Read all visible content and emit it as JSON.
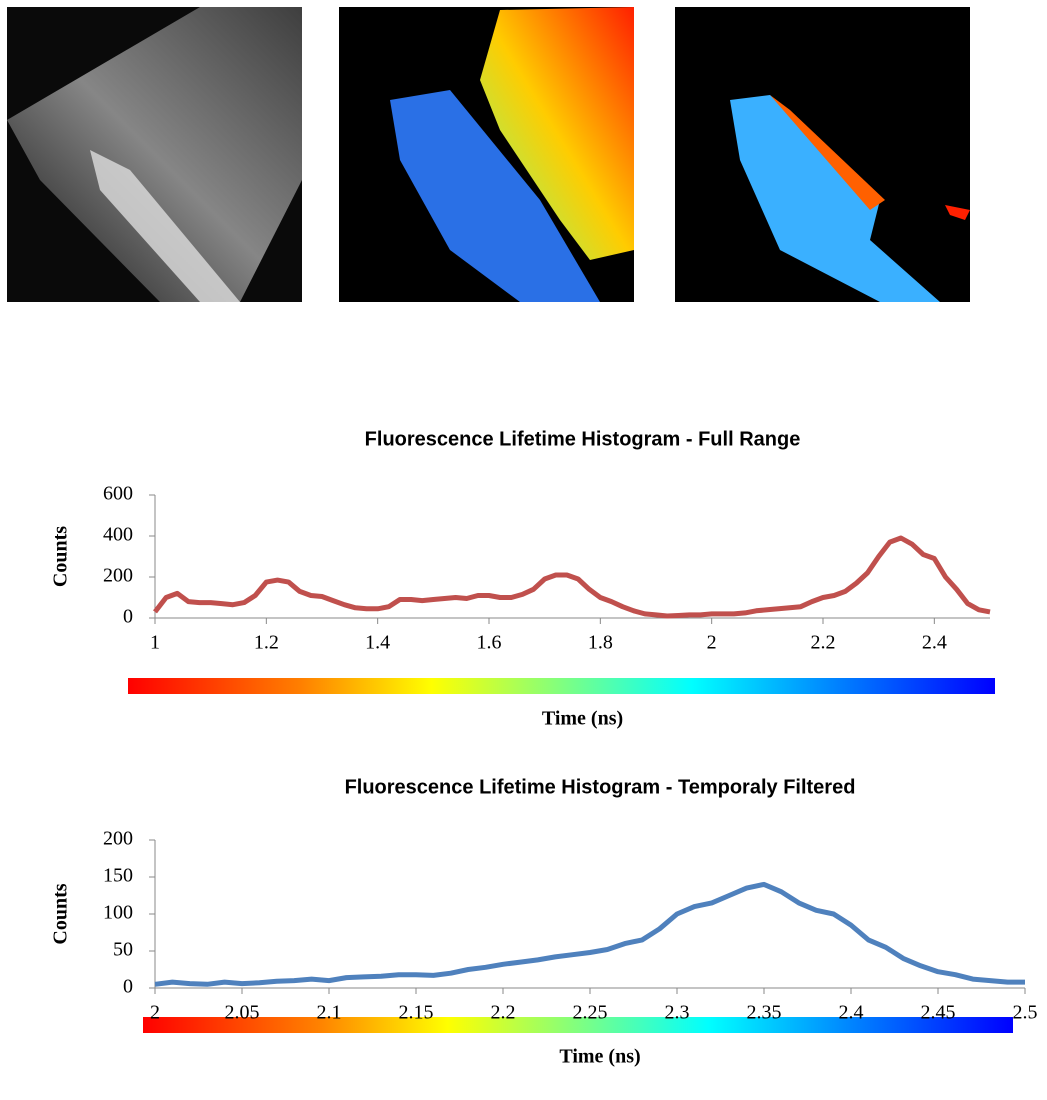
{
  "chart_data": [
    {
      "type": "line",
      "title": "Fluorescence Lifetime Histogram - Full Range",
      "x_label": "Time (ns)",
      "y_label": "Counts",
      "x": [
        1.0,
        1.02,
        1.04,
        1.06,
        1.08,
        1.1,
        1.12,
        1.14,
        1.16,
        1.18,
        1.2,
        1.22,
        1.24,
        1.26,
        1.28,
        1.3,
        1.32,
        1.34,
        1.36,
        1.38,
        1.4,
        1.42,
        1.44,
        1.46,
        1.48,
        1.5,
        1.52,
        1.54,
        1.56,
        1.58,
        1.6,
        1.62,
        1.64,
        1.66,
        1.68,
        1.7,
        1.72,
        1.74,
        1.76,
        1.78,
        1.8,
        1.82,
        1.84,
        1.86,
        1.88,
        1.9,
        1.92,
        1.94,
        1.96,
        1.98,
        2.0,
        2.02,
        2.04,
        2.06,
        2.08,
        2.1,
        2.12,
        2.14,
        2.16,
        2.18,
        2.2,
        2.22,
        2.24,
        2.26,
        2.28,
        2.3,
        2.32,
        2.34,
        2.36,
        2.38,
        2.4,
        2.42,
        2.44,
        2.46,
        2.48,
        2.5
      ],
      "values": [
        30,
        100,
        120,
        80,
        75,
        75,
        70,
        65,
        75,
        110,
        175,
        185,
        175,
        130,
        110,
        105,
        85,
        65,
        50,
        45,
        45,
        55,
        90,
        90,
        85,
        90,
        95,
        100,
        95,
        110,
        110,
        100,
        100,
        115,
        140,
        190,
        210,
        210,
        190,
        140,
        100,
        80,
        55,
        35,
        20,
        15,
        10,
        12,
        15,
        15,
        20,
        20,
        20,
        25,
        35,
        40,
        45,
        50,
        55,
        80,
        100,
        110,
        130,
        170,
        220,
        300,
        370,
        390,
        360,
        310,
        290,
        200,
        140,
        70,
        40,
        30
      ],
      "color": "#c0504d",
      "xlim": [
        1,
        2.5
      ],
      "xticks": [
        1,
        1.2,
        1.4,
        1.6,
        1.8,
        2,
        2.2,
        2.4
      ],
      "ylim": [
        0,
        600
      ],
      "yticks": [
        0,
        200,
        400,
        600
      ],
      "grid": false
    },
    {
      "type": "line",
      "title": "Fluorescence Lifetime Histogram - Temporaly Filtered",
      "x_label": "Time (ns)",
      "y_label": "Counts",
      "x": [
        2.0,
        2.01,
        2.02,
        2.03,
        2.04,
        2.05,
        2.06,
        2.07,
        2.08,
        2.09,
        2.1,
        2.11,
        2.12,
        2.13,
        2.14,
        2.15,
        2.16,
        2.17,
        2.18,
        2.19,
        2.2,
        2.21,
        2.22,
        2.23,
        2.24,
        2.25,
        2.26,
        2.27,
        2.28,
        2.29,
        2.3,
        2.31,
        2.32,
        2.33,
        2.34,
        2.35,
        2.36,
        2.37,
        2.38,
        2.39,
        2.4,
        2.41,
        2.42,
        2.43,
        2.44,
        2.45,
        2.46,
        2.47,
        2.48,
        2.49,
        2.5
      ],
      "values": [
        5,
        8,
        6,
        5,
        8,
        6,
        7,
        9,
        10,
        12,
        10,
        14,
        15,
        16,
        18,
        18,
        17,
        20,
        25,
        28,
        32,
        35,
        38,
        42,
        45,
        48,
        52,
        60,
        65,
        80,
        100,
        110,
        115,
        125,
        135,
        140,
        130,
        115,
        105,
        100,
        85,
        65,
        55,
        40,
        30,
        22,
        18,
        12,
        10,
        8,
        8
      ],
      "color": "#4f81bd",
      "xlim": [
        2,
        2.5
      ],
      "xticks": [
        2,
        2.05,
        2.1,
        2.15,
        2.2,
        2.25,
        2.3,
        2.35,
        2.4,
        2.45,
        2.5
      ],
      "ylim": [
        0,
        200
      ],
      "yticks": [
        0,
        50,
        100,
        150,
        200
      ],
      "grid": false
    }
  ]
}
